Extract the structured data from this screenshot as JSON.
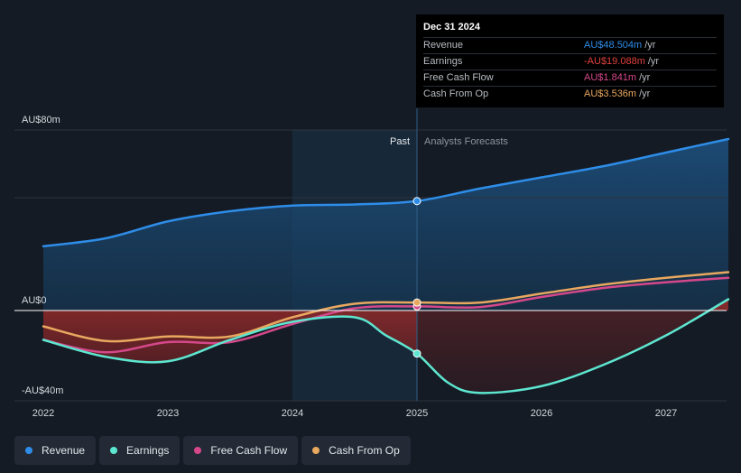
{
  "chart_data": {
    "type": "line",
    "x_ticks": [
      "2022",
      "2023",
      "2024",
      "2025",
      "2026",
      "2027"
    ],
    "y_ticks": [
      {
        "label": "AU$80m",
        "value": 80
      },
      {
        "label": "AU$0",
        "value": 0
      },
      {
        "label": "-AU$40m",
        "value": -40
      }
    ],
    "ylim": [
      -40,
      80
    ],
    "xlim": [
      2021.9,
      2027.5
    ],
    "divider_x": 2025.0,
    "past_label": "Past",
    "forecast_label": "Analysts Forecasts",
    "series": [
      {
        "key": "revenue",
        "name": "Revenue",
        "color": "#2e8de8",
        "points": [
          [
            2022.0,
            28.5
          ],
          [
            2022.5,
            32
          ],
          [
            2023.0,
            39.5
          ],
          [
            2023.5,
            44
          ],
          [
            2024.0,
            46.5
          ],
          [
            2024.5,
            47
          ],
          [
            2025.0,
            48.5
          ],
          [
            2025.5,
            54
          ],
          [
            2026.0,
            59
          ],
          [
            2026.5,
            64
          ],
          [
            2027.0,
            70
          ],
          [
            2027.5,
            76
          ]
        ]
      },
      {
        "key": "earnings",
        "name": "Earnings",
        "color": "#5de6d0",
        "points": [
          [
            2022.0,
            -13
          ],
          [
            2022.5,
            -20.5
          ],
          [
            2023.0,
            -22.5
          ],
          [
            2023.5,
            -13
          ],
          [
            2024.0,
            -5
          ],
          [
            2024.5,
            -3
          ],
          [
            2024.75,
            -11
          ],
          [
            2025.0,
            -19.088
          ],
          [
            2025.25,
            -32
          ],
          [
            2025.5,
            -36.5
          ],
          [
            2026.0,
            -33.5
          ],
          [
            2026.5,
            -24
          ],
          [
            2027.0,
            -11
          ],
          [
            2027.5,
            5
          ]
        ]
      },
      {
        "key": "fcf",
        "name": "Free Cash Flow",
        "color": "#d4488a",
        "points": [
          [
            2022.0,
            -13
          ],
          [
            2022.5,
            -18.5
          ],
          [
            2023.0,
            -14
          ],
          [
            2023.5,
            -14
          ],
          [
            2024.0,
            -6
          ],
          [
            2024.5,
            1
          ],
          [
            2025.0,
            1.841
          ],
          [
            2025.5,
            1.5
          ],
          [
            2026.0,
            6
          ],
          [
            2026.5,
            10
          ],
          [
            2027.0,
            12.5
          ],
          [
            2027.5,
            14.5
          ]
        ]
      },
      {
        "key": "cfo",
        "name": "Cash From Op",
        "color": "#e8a85f",
        "points": [
          [
            2022.0,
            -7
          ],
          [
            2022.5,
            -13.5
          ],
          [
            2023.0,
            -11.5
          ],
          [
            2023.5,
            -11.5
          ],
          [
            2024.0,
            -3
          ],
          [
            2024.5,
            3
          ],
          [
            2025.0,
            3.536
          ],
          [
            2025.5,
            3.5
          ],
          [
            2026.0,
            7.5
          ],
          [
            2026.5,
            11.5
          ],
          [
            2027.0,
            14.5
          ],
          [
            2027.5,
            17
          ]
        ]
      }
    ],
    "highlight_x": 2025.0
  },
  "tooltip": {
    "date": "Dec 31 2024",
    "rows": [
      {
        "label": "Revenue",
        "value": "AU$48.504m",
        "unit": "/yr",
        "color": "#2e8de8"
      },
      {
        "label": "Earnings",
        "value": "-AU$19.088m",
        "unit": "/yr",
        "color": "#e0413d"
      },
      {
        "label": "Free Cash Flow",
        "value": "AU$1.841m",
        "unit": "/yr",
        "color": "#d4488a"
      },
      {
        "label": "Cash From Op",
        "value": "AU$3.536m",
        "unit": "/yr",
        "color": "#e8a85f"
      }
    ]
  },
  "legend": [
    {
      "label": "Revenue",
      "color": "#2e8de8"
    },
    {
      "label": "Earnings",
      "color": "#5de6d0"
    },
    {
      "label": "Free Cash Flow",
      "color": "#d4488a"
    },
    {
      "label": "Cash From Op",
      "color": "#e8a85f"
    }
  ]
}
